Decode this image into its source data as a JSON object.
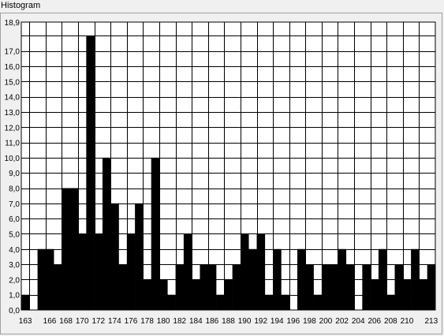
{
  "window": {
    "title": "Histogram"
  },
  "chart_data": {
    "type": "bar",
    "title": "Histogram",
    "xlabel": "",
    "ylabel": "",
    "bin_start": 163,
    "bin_width": 1,
    "x_ticks": [
      "163",
      "166",
      "168",
      "170",
      "172",
      "174",
      "176",
      "178",
      "180",
      "182",
      "184",
      "186",
      "188",
      "190",
      "192",
      "194",
      "196",
      "198",
      "200",
      "202",
      "204",
      "206",
      "208",
      "210",
      "213"
    ],
    "y_ticks": [
      "0,0",
      "1,0",
      "2,0",
      "3,0",
      "4,0",
      "5,0",
      "6,0",
      "7,0",
      "8,0",
      "9,0",
      "10,0",
      "11,0",
      "12,0",
      "13,0",
      "14,0",
      "15,0",
      "16,0",
      "17,0",
      "18,9"
    ],
    "ylim": [
      0,
      18.9
    ],
    "xlim": [
      163,
      214
    ],
    "grid": true,
    "bar_color": "#000000",
    "values": [
      1,
      0,
      4,
      4,
      3,
      8,
      8,
      5,
      18,
      5,
      10,
      7,
      3,
      5,
      7,
      2,
      10,
      2,
      1,
      3,
      5,
      2,
      3,
      3,
      1,
      2,
      3,
      5,
      4,
      5,
      1,
      4,
      1,
      0,
      4,
      3,
      1,
      3,
      3,
      4,
      3,
      0,
      3,
      2,
      4,
      1,
      3,
      2,
      4,
      2,
      3
    ]
  }
}
